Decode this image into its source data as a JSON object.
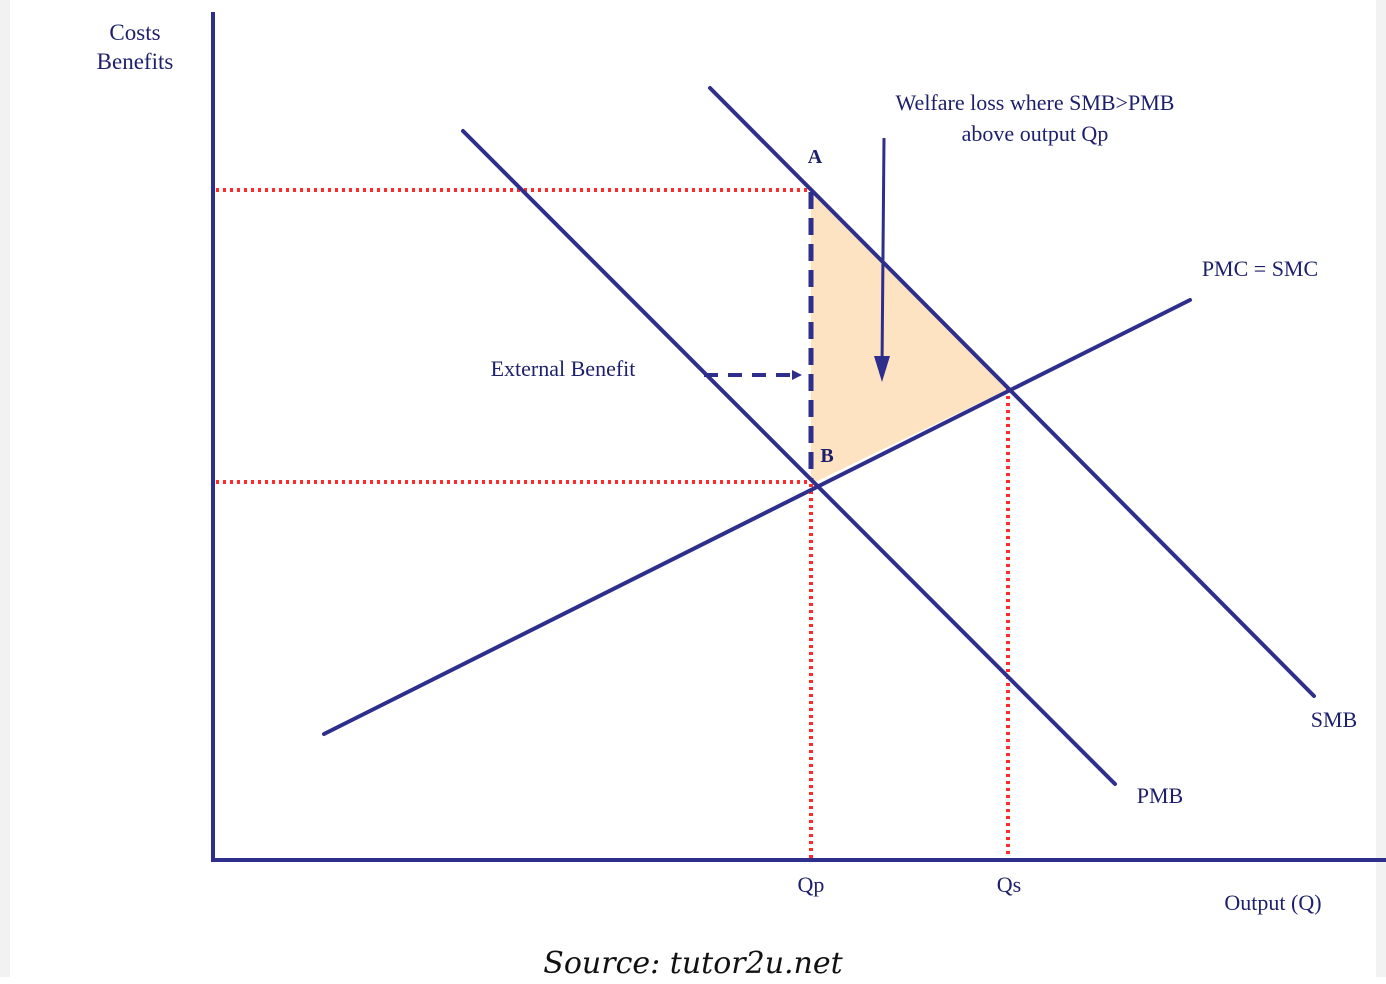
{
  "axes": {
    "y_label_line1": "Costs",
    "y_label_line2": "Benefits",
    "x_label": "Output (Q)"
  },
  "curves": {
    "smb_label": "SMB",
    "pmb_label": "PMB",
    "pmc_label": "PMC = SMC"
  },
  "points": {
    "a_label": "A",
    "b_label": "B",
    "qp_label": "Qp",
    "qs_label": "Qs"
  },
  "annotations": {
    "welfare_loss_line1": "Welfare loss where SMB>PMB",
    "welfare_loss_line2": "above output Qp",
    "external_benefit": "External Benefit"
  },
  "caption": "Source: tutor2u.net",
  "colors": {
    "curve": "#2e2e8c",
    "guide_dots": "#ff2a2a",
    "welfare_area": "#fde3c2",
    "axis": "#2e2e8c"
  }
}
